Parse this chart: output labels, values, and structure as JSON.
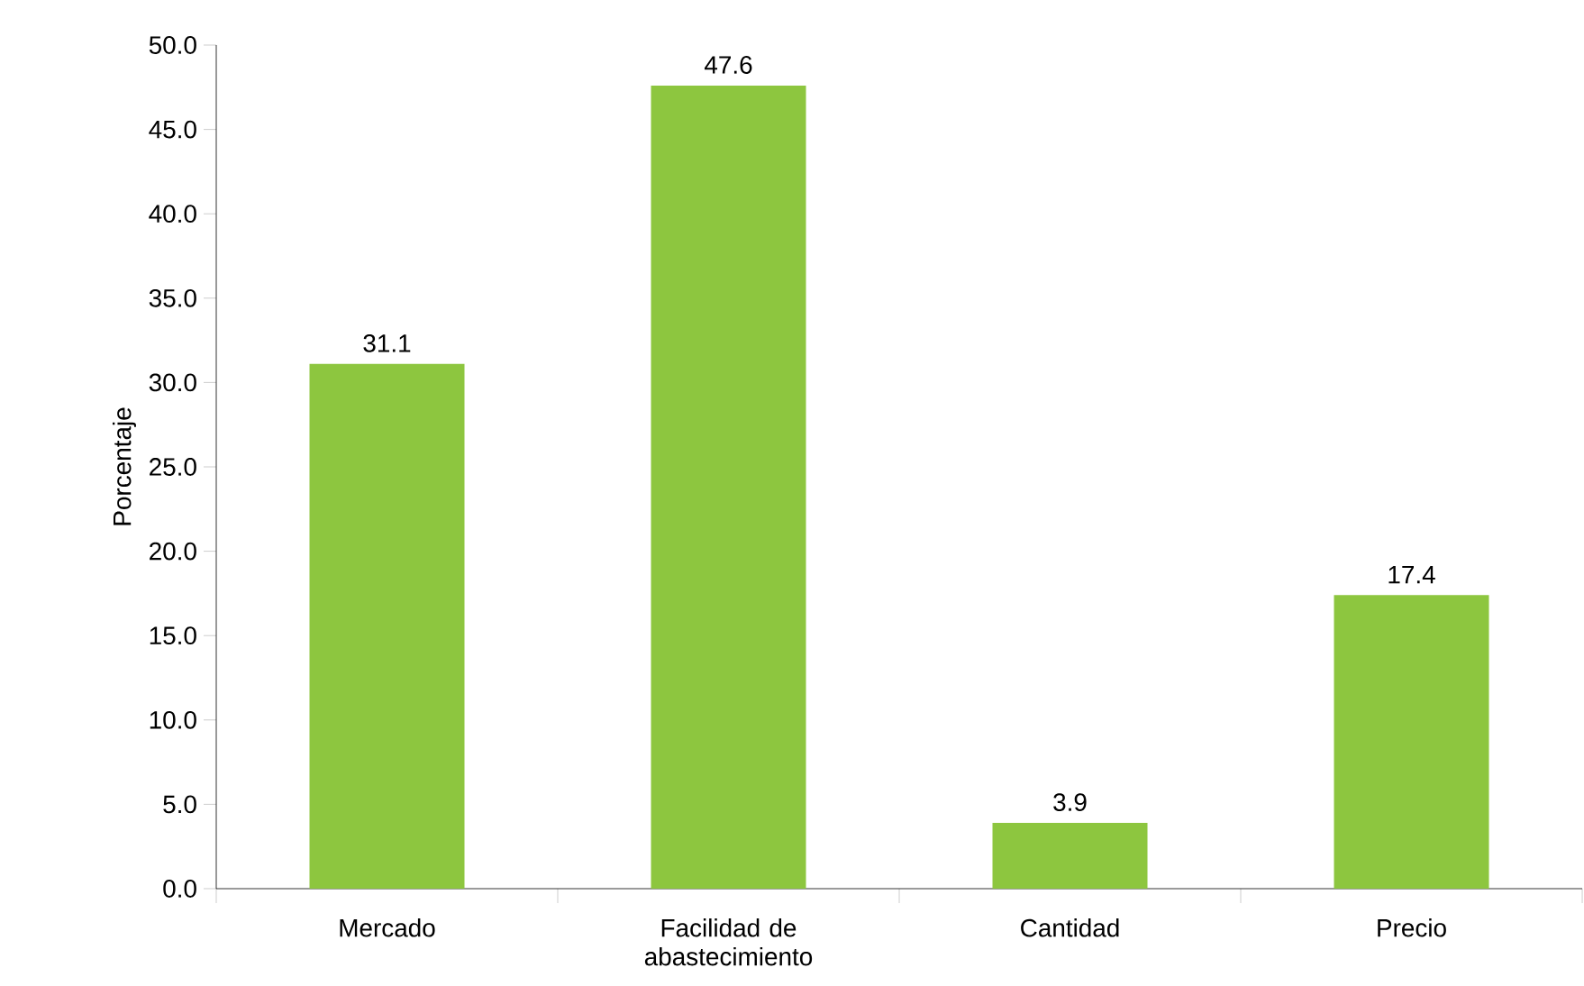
{
  "chart_data": {
    "type": "bar",
    "ylabel": "Porcentaje",
    "categories": [
      "Mercado",
      "Facilidad de abastecimiento",
      "Cantidad",
      "Precio"
    ],
    "values": [
      31.1,
      47.6,
      3.9,
      17.4
    ],
    "color": "#8dc63f",
    "ylim": [
      0,
      50
    ],
    "yticks": [
      {
        "value": 0,
        "label": "0.0"
      },
      {
        "value": 5,
        "label": "5.0"
      },
      {
        "value": 10,
        "label": "10.0"
      },
      {
        "value": 15,
        "label": "15.0"
      },
      {
        "value": 20,
        "label": "20.0"
      },
      {
        "value": 25,
        "label": "25.0"
      },
      {
        "value": 30,
        "label": "30.0"
      },
      {
        "value": 35,
        "label": "35.0"
      },
      {
        "value": 40,
        "label": "40.0"
      },
      {
        "value": 45,
        "label": "45.0"
      },
      {
        "value": 50,
        "label": "50.0"
      }
    ],
    "data_labels": true,
    "grid": false
  }
}
